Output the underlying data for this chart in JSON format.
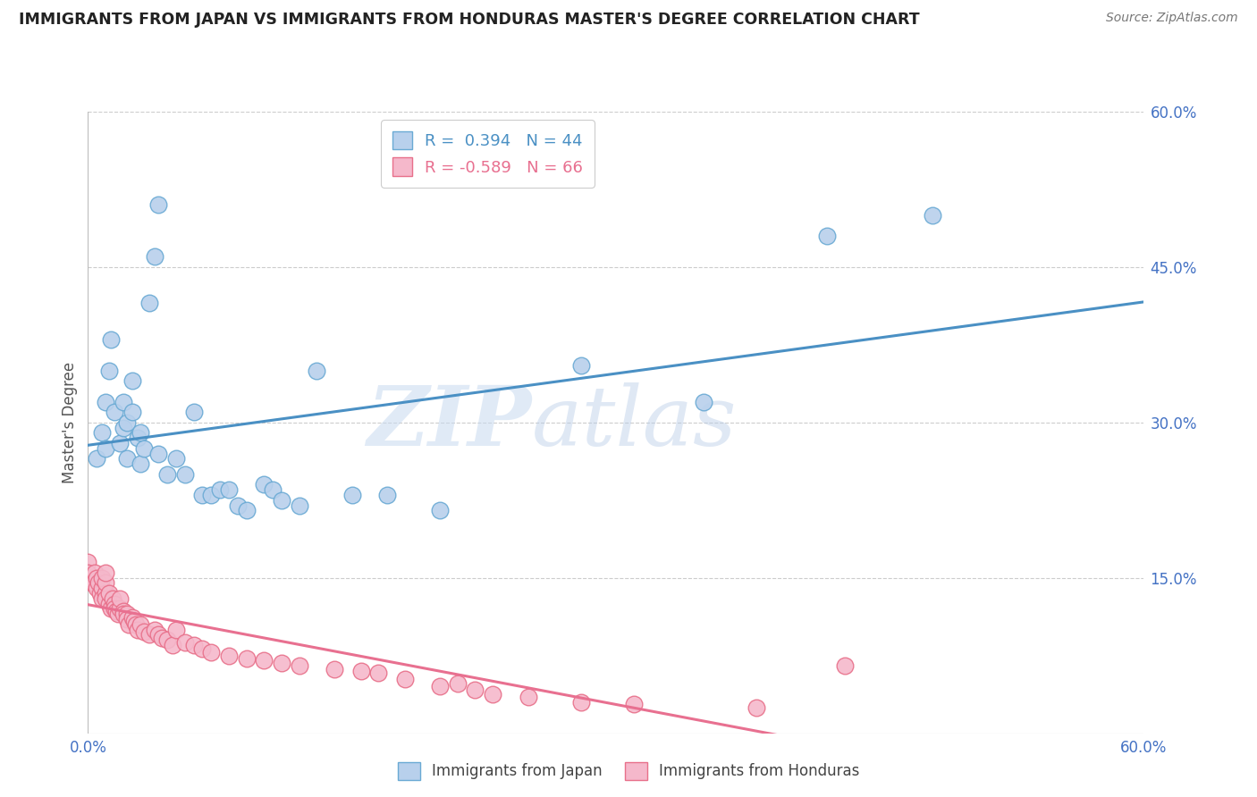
{
  "title": "IMMIGRANTS FROM JAPAN VS IMMIGRANTS FROM HONDURAS MASTER'S DEGREE CORRELATION CHART",
  "source": "Source: ZipAtlas.com",
  "ylabel": "Master's Degree",
  "xlim": [
    0.0,
    0.6
  ],
  "ylim": [
    0.0,
    0.6
  ],
  "x_ticks": [
    0.0,
    0.6
  ],
  "x_tick_labels": [
    "0.0%",
    "60.0%"
  ],
  "y_ticks_right": [
    0.15,
    0.3,
    0.45,
    0.6
  ],
  "y_tick_labels_right": [
    "15.0%",
    "30.0%",
    "45.0%",
    "60.0%"
  ],
  "grid_color": "#cccccc",
  "background_color": "#ffffff",
  "japan_color": "#b8d0ec",
  "japan_edge_color": "#6aaad4",
  "honduras_color": "#f5b8cb",
  "honduras_edge_color": "#e8708a",
  "japan_R": 0.394,
  "japan_N": 44,
  "honduras_R": -0.589,
  "honduras_N": 66,
  "japan_line_color": "#4a90c4",
  "honduras_line_color": "#e87090",
  "watermark_zip": "ZIP",
  "watermark_atlas": "atlas",
  "japan_scatter_x": [
    0.005,
    0.008,
    0.01,
    0.01,
    0.012,
    0.013,
    0.015,
    0.018,
    0.02,
    0.02,
    0.022,
    0.022,
    0.025,
    0.025,
    0.028,
    0.03,
    0.03,
    0.032,
    0.035,
    0.038,
    0.04,
    0.04,
    0.045,
    0.05,
    0.055,
    0.06,
    0.065,
    0.07,
    0.075,
    0.08,
    0.085,
    0.09,
    0.1,
    0.105,
    0.11,
    0.12,
    0.13,
    0.15,
    0.17,
    0.2,
    0.28,
    0.35,
    0.42,
    0.48
  ],
  "japan_scatter_y": [
    0.265,
    0.29,
    0.32,
    0.275,
    0.35,
    0.38,
    0.31,
    0.28,
    0.32,
    0.295,
    0.265,
    0.3,
    0.31,
    0.34,
    0.285,
    0.26,
    0.29,
    0.275,
    0.415,
    0.46,
    0.51,
    0.27,
    0.25,
    0.265,
    0.25,
    0.31,
    0.23,
    0.23,
    0.235,
    0.235,
    0.22,
    0.215,
    0.24,
    0.235,
    0.225,
    0.22,
    0.35,
    0.23,
    0.23,
    0.215,
    0.355,
    0.32,
    0.48,
    0.5
  ],
  "honduras_scatter_x": [
    0.0,
    0.0,
    0.002,
    0.003,
    0.004,
    0.005,
    0.005,
    0.006,
    0.007,
    0.008,
    0.008,
    0.008,
    0.01,
    0.01,
    0.01,
    0.01,
    0.012,
    0.012,
    0.013,
    0.014,
    0.015,
    0.015,
    0.016,
    0.017,
    0.018,
    0.018,
    0.02,
    0.02,
    0.022,
    0.022,
    0.023,
    0.025,
    0.026,
    0.027,
    0.028,
    0.03,
    0.032,
    0.035,
    0.038,
    0.04,
    0.042,
    0.045,
    0.048,
    0.05,
    0.055,
    0.06,
    0.065,
    0.07,
    0.08,
    0.09,
    0.1,
    0.11,
    0.12,
    0.14,
    0.155,
    0.165,
    0.18,
    0.2,
    0.21,
    0.22,
    0.23,
    0.25,
    0.28,
    0.31,
    0.38,
    0.43
  ],
  "honduras_scatter_y": [
    0.165,
    0.155,
    0.145,
    0.145,
    0.155,
    0.15,
    0.14,
    0.145,
    0.135,
    0.14,
    0.13,
    0.15,
    0.135,
    0.13,
    0.145,
    0.155,
    0.125,
    0.135,
    0.12,
    0.13,
    0.125,
    0.12,
    0.118,
    0.115,
    0.12,
    0.13,
    0.118,
    0.115,
    0.115,
    0.11,
    0.105,
    0.112,
    0.108,
    0.105,
    0.1,
    0.105,
    0.098,
    0.095,
    0.1,
    0.095,
    0.092,
    0.09,
    0.085,
    0.1,
    0.088,
    0.085,
    0.082,
    0.078,
    0.075,
    0.072,
    0.07,
    0.068,
    0.065,
    0.062,
    0.06,
    0.058,
    0.052,
    0.045,
    0.048,
    0.042,
    0.038,
    0.035,
    0.03,
    0.028,
    0.025,
    0.065
  ]
}
